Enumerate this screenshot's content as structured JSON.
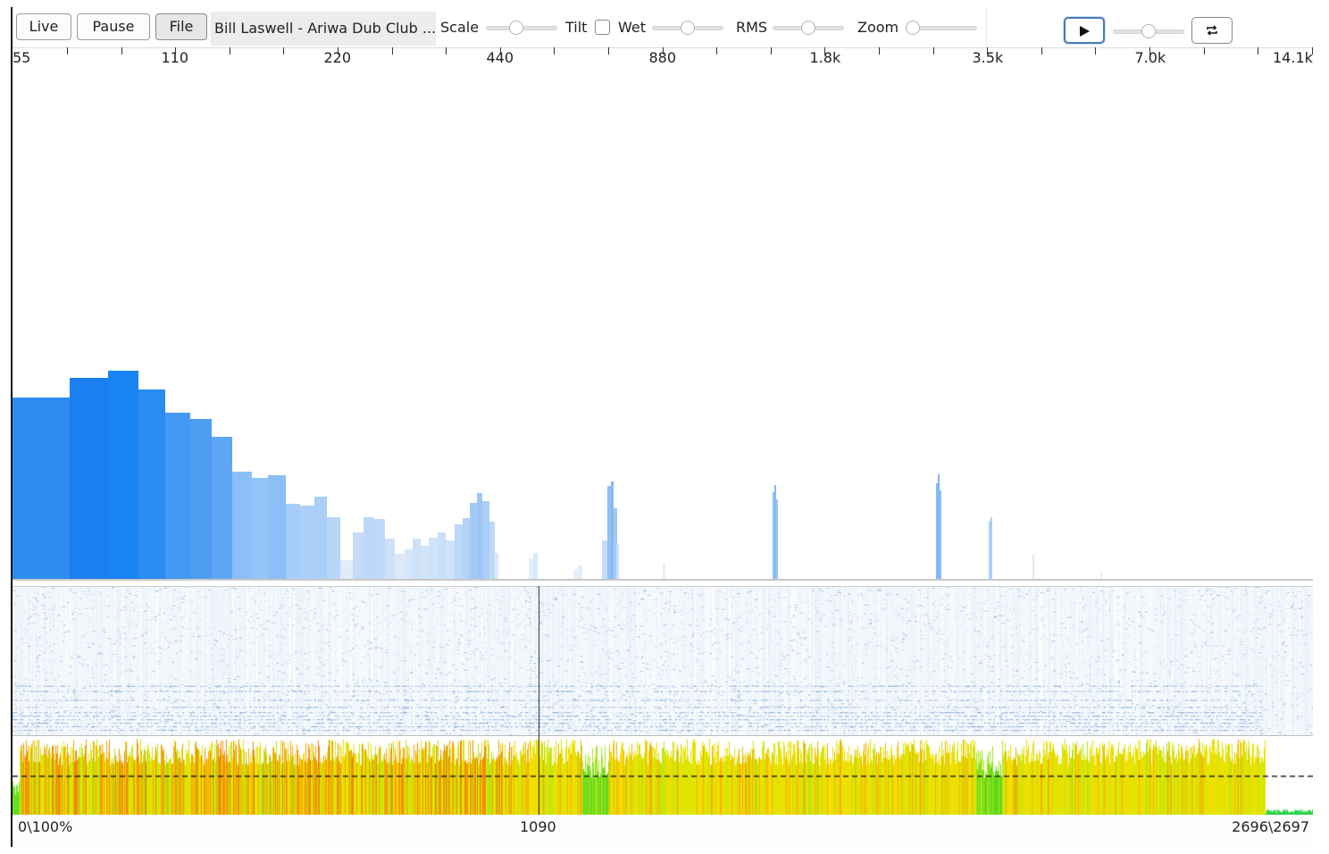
{
  "toolbar": {
    "live_label": "Live",
    "pause_label": "Pause",
    "file_label": "File",
    "track_title": "Bill Laswell - Ariwa Dub Club ...",
    "scale_label": "Scale",
    "tilt_label": "Tilt",
    "wet_label": "Wet",
    "rms_label": "RMS",
    "zoom_label": "Zoom",
    "play_icon": "play-icon",
    "loop_icon": "loop-icon",
    "tilt_checked": false
  },
  "sliders": {
    "scale": 0.4,
    "wet": 0.5,
    "rms": 0.5,
    "zoom": 0.0,
    "playback": 0.5
  },
  "freq_scale": {
    "labels": [
      "55",
      "110",
      "220",
      "440",
      "880",
      "1.8k",
      "3.5k",
      "7.0k",
      "14.1k"
    ]
  },
  "time_axis": {
    "start_label": "0\\100%",
    "mid_label": "1090",
    "end_label": "2696\\2697"
  },
  "colors": {
    "spectrum_strong": "#1a84f5",
    "spectrum_light": "#c4dcf7",
    "spectrogram": "#2a78c9",
    "loud_orange": "#f59a05",
    "loud_yellow": "#f0e400",
    "loud_green": "#5fdc18"
  }
}
